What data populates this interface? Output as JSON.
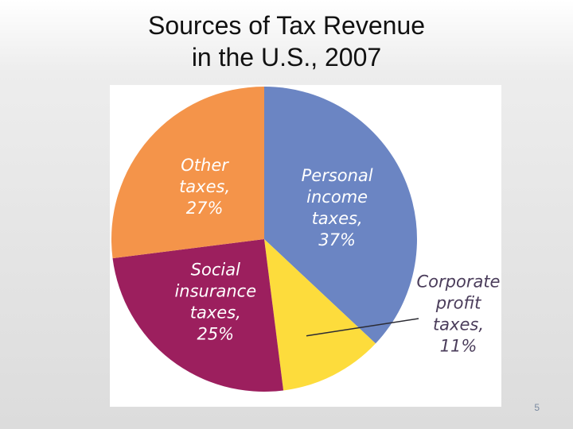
{
  "slide": {
    "title_line1": "Sources of Tax Revenue",
    "title_line2": "in the U.S., 2007",
    "slide_number": "5"
  },
  "chart_data": {
    "type": "pie",
    "title": "Sources of Tax Revenue in the U.S., 2007",
    "start_angle_deg": 0,
    "direction": "clockwise",
    "slices": [
      {
        "name": "Personal income taxes",
        "value": 37,
        "label_lines": [
          "Personal",
          "income",
          "taxes,",
          "37%"
        ],
        "color": "#6b85c3",
        "text_color": "#ffffff",
        "label_outside": false
      },
      {
        "name": "Corporate profit taxes",
        "value": 11,
        "label_lines": [
          "Corporate",
          "profit",
          "taxes,",
          "11%"
        ],
        "color": "#fddc3c",
        "text_color": "#4b3d5b",
        "label_outside": true
      },
      {
        "name": "Social insurance taxes",
        "value": 25,
        "label_lines": [
          "Social",
          "insurance",
          "taxes,",
          "25%"
        ],
        "color": "#9c1f5e",
        "text_color": "#ffffff",
        "label_outside": false
      },
      {
        "name": "Other taxes",
        "value": 27,
        "label_lines": [
          "Other",
          "taxes,",
          "27%"
        ],
        "color": "#f4944a",
        "text_color": "#ffffff",
        "label_outside": false
      }
    ]
  }
}
